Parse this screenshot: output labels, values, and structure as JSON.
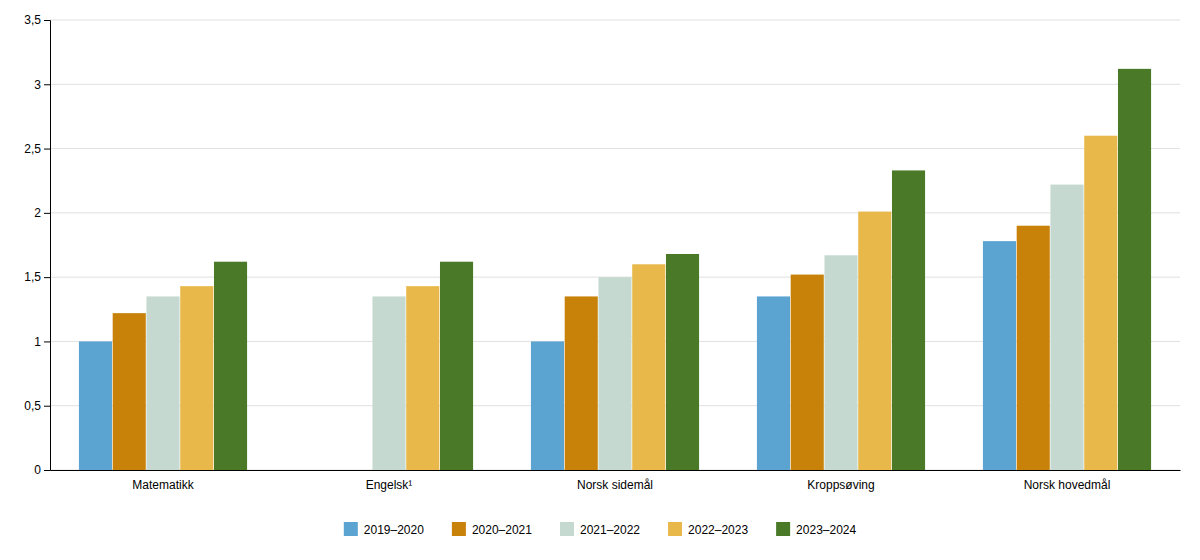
{
  "chart_data": {
    "type": "bar",
    "categories": [
      "Matematikk",
      "Engelsk¹",
      "Norsk sidemål",
      "Kroppsøving",
      "Norsk hovedmål"
    ],
    "series": [
      {
        "name": "2019–2020",
        "color": "#5BA3D0",
        "values": [
          1.0,
          null,
          1.0,
          1.35,
          1.78
        ]
      },
      {
        "name": "2020–2021",
        "color": "#C8820A",
        "values": [
          1.22,
          null,
          1.35,
          1.52,
          1.9
        ]
      },
      {
        "name": "2021–2022",
        "color": "#C5D9D0",
        "values": [
          1.35,
          1.35,
          1.5,
          1.67,
          2.22
        ]
      },
      {
        "name": "2022–2023",
        "color": "#E8B84B",
        "values": [
          1.43,
          1.43,
          1.6,
          2.01,
          2.6
        ]
      },
      {
        "name": "2023–2024",
        "color": "#4A7A28",
        "values": [
          1.62,
          1.62,
          1.68,
          2.33,
          3.12
        ]
      }
    ],
    "ylim": [
      0,
      3.5
    ],
    "yticks": [
      0,
      {
        "value": 0.5,
        "label": "0,5"
      },
      1,
      {
        "value": 1.5,
        "label": "1,5"
      },
      2,
      {
        "value": 2.5,
        "label": "2,5"
      },
      3,
      {
        "value": 3.5,
        "label": "3,5"
      }
    ],
    "grid": true,
    "legend": "bottom"
  }
}
